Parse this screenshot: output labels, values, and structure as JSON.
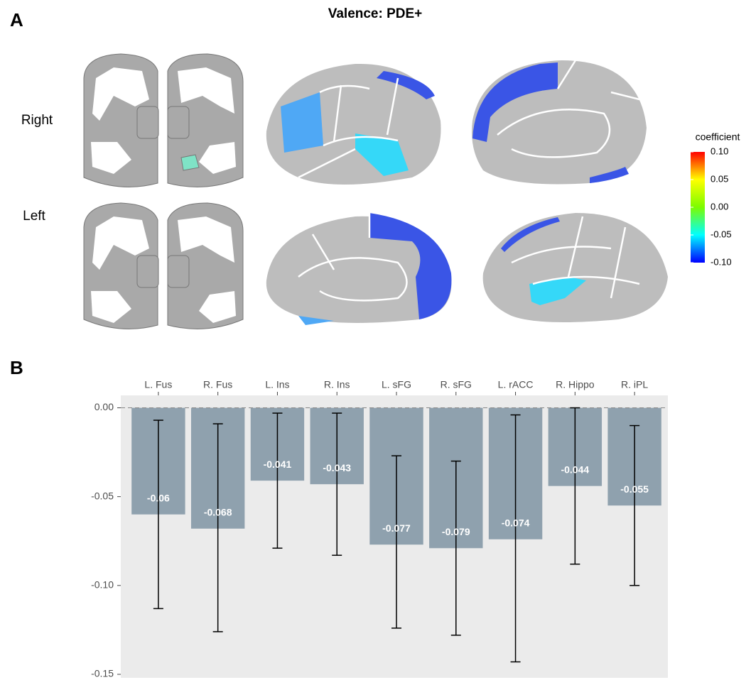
{
  "figure": {
    "title": "Valence: PDE+",
    "panel_labels": [
      "A",
      "B"
    ],
    "row_labels": [
      "Right",
      "Left"
    ],
    "colorbar": {
      "title": "coefficient",
      "lim": [
        -0.1,
        0.1
      ],
      "ticks": [
        {
          "value": 0.1,
          "label": "0.10"
        },
        0.05,
        {
          "value": 0,
          "label": "0.00"
        },
        -0.05,
        {
          "value": -0.1,
          "label": "-0.10"
        }
      ],
      "colors": [
        "#0000ff",
        "#00ffff",
        "#7cfc00",
        "#ffff00",
        "#ff0000"
      ]
    }
  },
  "chart_data": {
    "type": "bar",
    "categories": [
      "L. Fus",
      "R. Fus",
      "L. Ins",
      "R. Ins",
      "L. sFG",
      "R. sFG",
      "L. rACC",
      "R. Hippo",
      "R. iPL"
    ],
    "values": [
      -0.06,
      -0.068,
      -0.041,
      -0.043,
      -0.077,
      -0.079,
      -0.074,
      -0.044,
      -0.055
    ],
    "ci_low": [
      -0.113,
      -0.126,
      -0.079,
      -0.083,
      -0.124,
      -0.128,
      -0.143,
      -0.088,
      -0.1
    ],
    "ci_high": [
      -0.007,
      -0.009,
      -0.003,
      -0.003,
      -0.027,
      -0.03,
      -0.004,
      0,
      -0.01
    ],
    "color": "#8fa1ae",
    "ylim": [
      -0.152,
      0.007
    ],
    "yticks": [
      {
        "value": 0,
        "label": "0.00"
      },
      -0.05,
      {
        "value": -0.1,
        "label": "-0.10"
      },
      -0.15
    ]
  }
}
